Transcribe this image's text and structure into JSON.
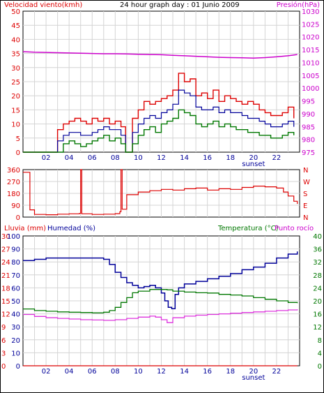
{
  "title": "24 hour graph day : 01 Junio 2009",
  "colors": {
    "bg": "#ffffff",
    "plot_bg": "#ffffff",
    "grid": "#d4d4d4",
    "frame": "#000000",
    "red": "#dd0000",
    "blue": "#000099",
    "green": "#007700",
    "magenta": "#cc00cc",
    "pink": "#dd33dd"
  },
  "chart_data": [
    {
      "type": "line",
      "name": "wind",
      "left_label": "Velocidad viento(kmh)",
      "right_label": "Presión(hPa)",
      "x_ticks": [
        "02",
        "04",
        "06",
        "08",
        "10",
        "12",
        "14",
        "16",
        "18",
        "20",
        "22"
      ],
      "sunset_label": "sunset",
      "ylim_left": [
        0,
        50
      ],
      "yticks_left": [
        "0",
        "5",
        "10",
        "15",
        "20",
        "25",
        "30",
        "35",
        "40",
        "45",
        "50"
      ],
      "ylim_right": [
        975,
        1030
      ],
      "yticks_right": [
        "975",
        "980",
        "985",
        "990",
        "995",
        "1000",
        "1005",
        "1010",
        "1015",
        "1020",
        "1025",
        "1030"
      ],
      "series": [
        {
          "key": "gust",
          "color": "red",
          "x": [
            0,
            2.8,
            3.0,
            3.5,
            4.0,
            4.5,
            5.0,
            5.5,
            6.0,
            6.5,
            7.0,
            7.5,
            8.0,
            8.5,
            8.9,
            9.2,
            9.5,
            10.0,
            10.5,
            11.0,
            11.5,
            12.0,
            12.5,
            13.0,
            13.5,
            14.0,
            14.5,
            15.0,
            15.5,
            16.0,
            16.5,
            17.0,
            17.5,
            18.0,
            18.5,
            19.0,
            19.5,
            20.0,
            20.5,
            21.0,
            21.5,
            22.0,
            22.5,
            23.0,
            23.5
          ],
          "y": [
            0,
            0,
            8,
            10,
            11,
            12,
            11,
            10,
            12,
            11,
            12,
            10,
            11,
            9,
            0,
            0,
            12,
            15,
            18,
            17,
            18,
            19,
            20,
            22,
            28,
            25,
            26,
            20,
            21,
            19,
            22,
            18,
            20,
            19,
            18,
            17,
            18,
            17,
            15,
            14,
            13,
            13,
            14,
            16,
            12
          ]
        },
        {
          "key": "mean",
          "color": "blue",
          "x": [
            0,
            2.8,
            3.0,
            3.5,
            4.0,
            4.5,
            5.0,
            5.5,
            6.0,
            6.5,
            7.0,
            7.5,
            8.0,
            8.5,
            8.9,
            9.2,
            9.5,
            10.0,
            10.5,
            11.0,
            11.5,
            12.0,
            12.5,
            13.0,
            13.5,
            14.0,
            14.5,
            15.0,
            15.5,
            16.0,
            16.5,
            17.0,
            17.5,
            18.0,
            18.5,
            19.0,
            19.5,
            20.0,
            20.5,
            21.0,
            21.5,
            22.0,
            22.5,
            23.0,
            23.5
          ],
          "y": [
            0,
            0,
            4,
            6,
            7,
            7,
            6,
            6,
            7,
            8,
            9,
            8,
            8,
            6,
            0,
            0,
            7,
            10,
            12,
            13,
            12,
            14,
            15,
            17,
            22,
            21,
            20,
            16,
            15,
            15,
            16,
            14,
            15,
            14,
            14,
            13,
            12,
            12,
            11,
            10,
            9,
            9,
            10,
            11,
            9
          ]
        },
        {
          "key": "min",
          "color": "green",
          "x": [
            0,
            2.8,
            3.0,
            3.5,
            4.0,
            4.5,
            5.0,
            5.5,
            6.0,
            6.5,
            7.0,
            7.5,
            8.0,
            8.5,
            8.9,
            9.2,
            9.5,
            10.0,
            10.5,
            11.0,
            11.5,
            12.0,
            12.5,
            13.0,
            13.5,
            14.0,
            14.5,
            15.0,
            15.5,
            16.0,
            16.5,
            17.0,
            17.5,
            18.0,
            18.5,
            19.0,
            19.5,
            20.0,
            20.5,
            21.0,
            21.5,
            22.0,
            22.5,
            23.0,
            23.5
          ],
          "y": [
            0,
            0,
            0,
            3,
            4,
            3,
            2,
            3,
            4,
            5,
            6,
            4,
            5,
            3,
            0,
            0,
            3,
            6,
            8,
            9,
            7,
            10,
            11,
            12,
            15,
            14,
            13,
            10,
            9,
            10,
            11,
            9,
            10,
            9,
            8,
            8,
            7,
            7,
            6,
            6,
            5,
            5,
            6,
            7,
            6
          ]
        },
        {
          "key": "pressure",
          "axis": "right",
          "color": "magenta",
          "x": [
            0,
            1,
            2,
            3,
            4,
            5,
            6,
            7,
            8,
            9,
            10,
            11,
            12,
            13,
            14,
            15,
            16,
            17,
            18,
            19,
            20,
            21,
            22,
            23,
            23.8
          ],
          "y": [
            1014.2,
            1014.0,
            1013.9,
            1013.8,
            1013.7,
            1013.6,
            1013.5,
            1013.4,
            1013.4,
            1013.3,
            1013.2,
            1013.1,
            1013.0,
            1012.8,
            1012.6,
            1012.4,
            1012.2,
            1012.0,
            1011.9,
            1011.8,
            1011.7,
            1011.9,
            1012.2,
            1012.6,
            1013.1
          ]
        }
      ]
    },
    {
      "type": "line",
      "name": "direction",
      "left_ticks": [
        "0",
        "90",
        "180",
        "270",
        "360"
      ],
      "right_ticks": [
        "N",
        "W",
        "S",
        "E",
        "N"
      ],
      "ylim": [
        0,
        360
      ],
      "x": [
        0,
        0.5,
        0.6,
        1,
        2,
        3,
        4,
        4.9,
        5.0,
        5.1,
        6,
        7,
        8,
        8.4,
        8.5,
        8.6,
        9,
        10,
        11,
        12,
        13,
        14,
        15,
        16,
        17,
        18,
        19,
        20,
        21,
        22,
        22.6,
        23,
        23.5,
        23.8
      ],
      "y": [
        340,
        340,
        55,
        20,
        18,
        22,
        25,
        28,
        360,
        25,
        20,
        22,
        26,
        40,
        360,
        60,
        170,
        190,
        200,
        210,
        205,
        215,
        220,
        205,
        215,
        210,
        225,
        235,
        230,
        220,
        190,
        160,
        120,
        100
      ]
    },
    {
      "type": "line",
      "name": "humidity-temperature",
      "left_label_1": "Lluvia (mm)",
      "left_label_2": "Humedad (%)",
      "right_label_1": "Temperatura (°C)",
      "right_label_2": "Punto rocío",
      "x_ticks": [
        "02",
        "04",
        "06",
        "08",
        "10",
        "12",
        "14",
        "16",
        "18",
        "20",
        "22"
      ],
      "sunset_label": "sunset",
      "yticks_rain": [
        "0",
        "3",
        "6",
        "9",
        "12",
        "15",
        "18",
        "21",
        "24",
        "27",
        "30"
      ],
      "yticks_humidity": [
        "0",
        "10",
        "20",
        "30",
        "40",
        "50",
        "60",
        "70",
        "80",
        "90",
        "100"
      ],
      "yticks_temp": [
        "0",
        "4",
        "8",
        "12",
        "16",
        "20",
        "24",
        "28",
        "32",
        "36",
        "40"
      ],
      "ylim_humidity": [
        0,
        100
      ],
      "ylim_temp": [
        0,
        40
      ],
      "series": [
        {
          "key": "humidity",
          "color": "blue",
          "axis": "humidity",
          "x": [
            0,
            1,
            2,
            3,
            4,
            5,
            6,
            7,
            7.5,
            8,
            8.5,
            9,
            9.5,
            10,
            10.5,
            11,
            11.5,
            12,
            12.3,
            12.6,
            12.9,
            13.2,
            13.5,
            14,
            15,
            16,
            17,
            18,
            19,
            20,
            21,
            22,
            23,
            23.8
          ],
          "y": [
            81,
            82,
            83,
            83,
            83,
            83,
            83,
            82,
            78,
            72,
            68,
            64,
            62,
            60,
            61,
            62,
            60,
            56,
            50,
            45,
            44,
            55,
            60,
            63,
            65,
            67,
            69,
            71,
            74,
            76,
            79,
            83,
            86,
            88
          ]
        },
        {
          "key": "temperature",
          "color": "green",
          "axis": "temp",
          "x": [
            0,
            1,
            2,
            3,
            4,
            5,
            6,
            7,
            7.5,
            8,
            8.5,
            9,
            9.5,
            10,
            11,
            12,
            12.5,
            13,
            14,
            15,
            16,
            17,
            18,
            19,
            20,
            21,
            22,
            23,
            23.8
          ],
          "y": [
            17.5,
            17.0,
            16.8,
            16.6,
            16.5,
            16.4,
            16.3,
            16.5,
            17.0,
            18.0,
            19.5,
            21.0,
            22.5,
            23.0,
            23.5,
            23.5,
            23.4,
            23.0,
            22.7,
            22.5,
            22.4,
            22.0,
            21.8,
            21.5,
            21.0,
            20.5,
            20.0,
            19.5,
            19.3
          ]
        },
        {
          "key": "dewpoint",
          "color": "pink",
          "axis": "temp",
          "x": [
            0,
            1,
            2,
            3,
            4,
            5,
            6,
            7,
            8,
            9,
            10,
            11,
            11.5,
            12,
            12.5,
            13,
            14,
            15,
            16,
            17,
            18,
            19,
            20,
            21,
            22,
            23,
            23.8
          ],
          "y": [
            15.8,
            15.2,
            14.8,
            14.6,
            14.4,
            14.2,
            14.1,
            14.0,
            14.2,
            14.6,
            15.0,
            15.3,
            15.0,
            14.2,
            13.3,
            14.8,
            15.3,
            15.6,
            15.8,
            16.0,
            16.2,
            16.4,
            16.6,
            16.8,
            17.0,
            17.2,
            17.4
          ]
        },
        {
          "key": "rain",
          "color": "red",
          "axis": "humidity",
          "x": [
            0,
            23.8
          ],
          "y": [
            0,
            0
          ]
        }
      ]
    }
  ]
}
